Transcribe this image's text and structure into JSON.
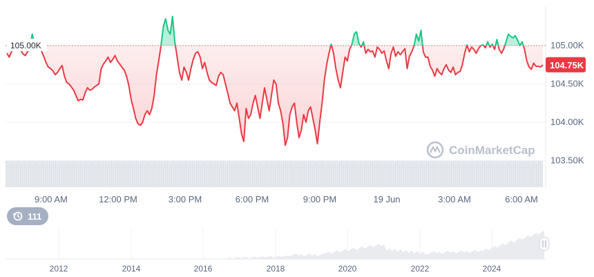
{
  "chart_data": {
    "type": "area",
    "y_ticks": [
      "105.00K",
      "104.50K",
      "104.00K",
      "103.50K"
    ],
    "y_tick_values": [
      105000,
      104500,
      104000,
      103500
    ],
    "ylim": [
      103400,
      105550
    ],
    "x_ticks": [
      "9:00 AM",
      "12:00 PM",
      "3:00 PM",
      "6:00 PM",
      "9:00 PM",
      "19 Jun",
      "3:00 AM",
      "6:00 AM"
    ],
    "reference_line": {
      "value": 105000,
      "label": "105.00K"
    },
    "current_price": {
      "value": 104750,
      "label": "104.75K"
    },
    "series": [
      {
        "values": [
          104900,
          104850,
          104920,
          104970,
          104980,
          105000,
          104940,
          104890,
          104870,
          104920,
          104960,
          105150,
          105020,
          104970,
          104960,
          104930,
          104860,
          104780,
          104720,
          104700,
          104670,
          104620,
          104650,
          104700,
          104740,
          104600,
          104520,
          104500,
          104460,
          104420,
          104350,
          104280,
          104300,
          104290,
          104380,
          104450,
          104420,
          104430,
          104460,
          104480,
          104500,
          104700,
          104760,
          104800,
          104850,
          104780,
          104820,
          104870,
          104800,
          104760,
          104720,
          104680,
          104600,
          104480,
          104300,
          104180,
          104050,
          103980,
          103960,
          104000,
          104100,
          104150,
          104100,
          104180,
          104350,
          104620,
          104800,
          105000,
          105250,
          105350,
          105200,
          105150,
          105380,
          105050,
          104850,
          104650,
          104550,
          104720,
          104650,
          104550,
          104700,
          104820,
          104900,
          104920,
          104850,
          104700,
          104780,
          104650,
          104550,
          104520,
          104500,
          104480,
          104600,
          104650,
          104620,
          104500,
          104380,
          104250,
          104200,
          104150,
          104250,
          104050,
          103850,
          103750,
          104180,
          104050,
          104100,
          104250,
          104350,
          104200,
          104050,
          104250,
          104450,
          104300,
          104150,
          104350,
          104550,
          104500,
          104250,
          104150,
          103980,
          103700,
          103800,
          104100,
          104200,
          104250,
          104000,
          103800,
          103900,
          104100,
          104000,
          104150,
          104200,
          104050,
          103900,
          103720,
          104000,
          104250,
          104550,
          104750,
          104900,
          105020,
          104900,
          104700,
          104550,
          104450,
          104650,
          104850,
          104800,
          104950,
          105020,
          105150,
          105180,
          105030,
          104980,
          105050,
          104900,
          104950,
          104920,
          104930,
          104850,
          104980,
          104950,
          104900,
          104930,
          104800,
          104700,
          104900,
          104980,
          104860,
          104920,
          104880,
          104920,
          104960,
          104700,
          104860,
          104920,
          105000,
          105150,
          105060,
          105200,
          104920,
          104850,
          104850,
          104730,
          104680,
          104600,
          104700,
          104650,
          104620,
          104700,
          104750,
          104680,
          104650,
          104720,
          104620,
          104650,
          104660,
          104750,
          104900,
          105010,
          104920,
          104980,
          104950,
          104900,
          104960,
          105000,
          105010,
          104970,
          105050,
          104980,
          105020,
          104950,
          105080,
          104950,
          104900,
          104960,
          105050,
          105150,
          105120,
          105100,
          105130,
          105070,
          105000,
          105050,
          104950,
          104800,
          104720,
          104690,
          104770,
          104730,
          104730,
          104720,
          104750
        ]
      }
    ],
    "navigator": {
      "x_ticks": [
        "2012",
        "2014",
        "2016",
        "2018",
        "2020",
        "2022",
        "2024"
      ]
    }
  },
  "watermark": "CoinMarketCap",
  "history_badge": {
    "count": "111",
    "icon": "history-icon"
  },
  "colors": {
    "down": "#ea3943",
    "up": "#16c784",
    "down_fill": "#ea3943",
    "up_fill": "#16c784",
    "grid": "#eff2f5",
    "ref_line": "#cf8a8a",
    "price_tag": "#ea3943",
    "volume": "#e6e9ee",
    "navigator": "#e9ebef"
  }
}
